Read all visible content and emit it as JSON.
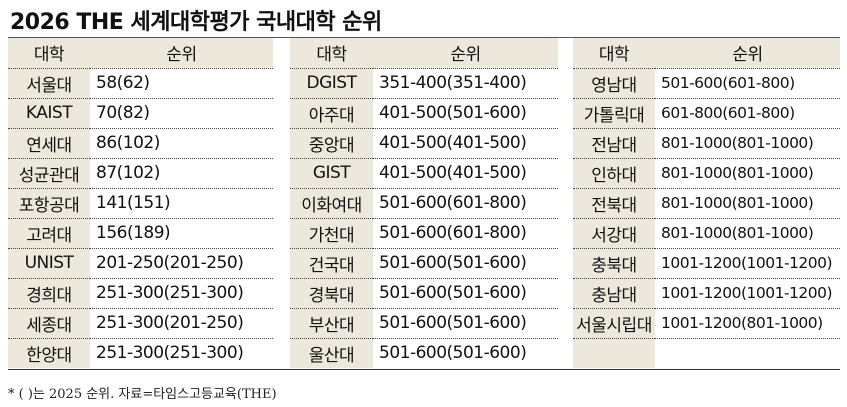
{
  "title": "2026 THE 세계대학평가 국내대학 순위",
  "headers": {
    "name": "대학",
    "rank": "순위"
  },
  "tables": [
    [
      {
        "name": "서울대",
        "rank": "58(62)"
      },
      {
        "name": "KAIST",
        "rank": "70(82)"
      },
      {
        "name": "연세대",
        "rank": "86(102)"
      },
      {
        "name": "성균관대",
        "rank": "87(102)"
      },
      {
        "name": "포항공대",
        "rank": "141(151)"
      },
      {
        "name": "고려대",
        "rank": "156(189)"
      },
      {
        "name": "UNIST",
        "rank": "201-250(201-250)"
      },
      {
        "name": "경희대",
        "rank": "251-300(251-300)"
      },
      {
        "name": "세종대",
        "rank": "251-300(201-250)"
      },
      {
        "name": "한양대",
        "rank": "251-300(251-300)"
      }
    ],
    [
      {
        "name": "DGIST",
        "rank": "351-400(351-400)"
      },
      {
        "name": "아주대",
        "rank": "401-500(501-600)"
      },
      {
        "name": "중앙대",
        "rank": "401-500(401-500)"
      },
      {
        "name": "GIST",
        "rank": "401-500(401-500)"
      },
      {
        "name": "이화여대",
        "rank": "501-600(601-800)"
      },
      {
        "name": "가천대",
        "rank": "501-600(601-800)"
      },
      {
        "name": "건국대",
        "rank": "501-600(501-600)"
      },
      {
        "name": "경북대",
        "rank": "501-600(501-600)"
      },
      {
        "name": "부산대",
        "rank": "501-600(501-600)"
      },
      {
        "name": "울산대",
        "rank": "501-600(501-600)"
      }
    ],
    [
      {
        "name": "영남대",
        "rank": "501-600(601-800)"
      },
      {
        "name": "가톨릭대",
        "rank": "601-800(601-800)"
      },
      {
        "name": "전남대",
        "rank": "801-1000(801-1000)"
      },
      {
        "name": "인하대",
        "rank": "801-1000(801-1000)"
      },
      {
        "name": "전북대",
        "rank": "801-1000(801-1000)"
      },
      {
        "name": "서강대",
        "rank": "801-1000(801-1000)"
      },
      {
        "name": "충북대",
        "rank": "1001-1200(1001-1200)"
      },
      {
        "name": "충남대",
        "rank": "1001-1200(1001-1200)"
      },
      {
        "name": "서울시립대",
        "rank": "1001-1200(801-1000)"
      },
      {
        "name": "",
        "rank": ""
      }
    ]
  ],
  "footnote": "* (    )는 2025 순위. 자료=타임스고등교육(THE)"
}
